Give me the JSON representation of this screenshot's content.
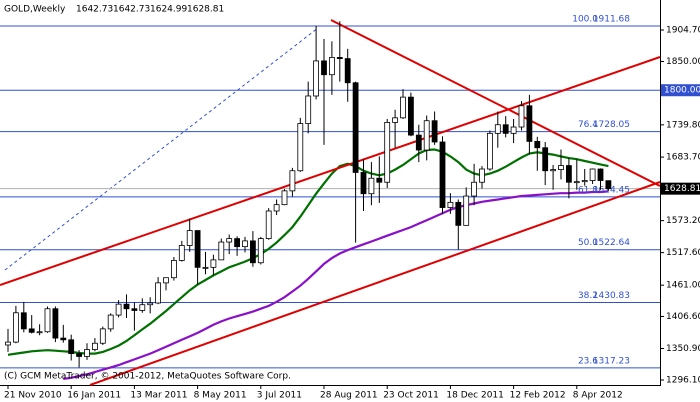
{
  "chart_data": {
    "type": "candlestick",
    "title": "GOLD,Weekly",
    "footer": "(C) GCM MetaTrader, © 2001-2012, MetaQuotes Software Corp.",
    "categories": [
      "21 Nov 2010",
      null,
      null,
      null,
      null,
      null,
      null,
      null,
      "16 Jan 2011",
      null,
      null,
      null,
      null,
      null,
      null,
      null,
      "13 Mar 2011",
      null,
      null,
      null,
      null,
      null,
      null,
      null,
      "8 May 2011",
      null,
      null,
      null,
      null,
      null,
      null,
      null,
      "3 Jul 2011",
      null,
      null,
      null,
      null,
      null,
      null,
      null,
      "28 Aug 2011",
      null,
      null,
      null,
      null,
      null,
      null,
      null,
      "23 Oct 2011",
      null,
      null,
      null,
      null,
      null,
      null,
      null,
      "18 Dec 2011",
      null,
      null,
      null,
      null,
      null,
      null,
      null,
      "12 Feb 2012",
      null,
      null,
      null,
      null,
      null,
      null,
      null,
      "8 Apr 2012",
      null,
      null,
      null,
      null
    ],
    "candles": [
      [
        1357,
        1385,
        1345,
        1362
      ],
      [
        1362,
        1425,
        1360,
        1413
      ],
      [
        1413,
        1432,
        1379,
        1385
      ],
      [
        1385,
        1409,
        1377,
        1379
      ],
      [
        1379,
        1393,
        1374,
        1380
      ],
      [
        1380,
        1424,
        1378,
        1420
      ],
      [
        1420,
        1424,
        1362,
        1369
      ],
      [
        1369,
        1392,
        1361,
        1366
      ],
      [
        1366,
        1375,
        1330,
        1342
      ],
      [
        1342,
        1348,
        1318,
        1337
      ],
      [
        1337,
        1360,
        1331,
        1349
      ],
      [
        1349,
        1369,
        1346,
        1360
      ],
      [
        1360,
        1389,
        1357,
        1385
      ],
      [
        1385,
        1412,
        1380,
        1409
      ],
      [
        1409,
        1435,
        1405,
        1428
      ],
      [
        1428,
        1445,
        1404,
        1420
      ],
      [
        1420,
        1431,
        1382,
        1417
      ],
      [
        1417,
        1438,
        1413,
        1427
      ],
      [
        1427,
        1440,
        1412,
        1430
      ],
      [
        1430,
        1475,
        1428,
        1465
      ],
      [
        1465,
        1474,
        1452,
        1474
      ],
      [
        1474,
        1510,
        1469,
        1504
      ],
      [
        1504,
        1538,
        1502,
        1530
      ],
      [
        1530,
        1577,
        1519,
        1556
      ],
      [
        1556,
        1556,
        1462,
        1492
      ],
      [
        1492,
        1519,
        1480,
        1492
      ],
      [
        1492,
        1514,
        1478,
        1505
      ],
      [
        1505,
        1542,
        1505,
        1536
      ],
      [
        1536,
        1549,
        1515,
        1542
      ],
      [
        1542,
        1546,
        1512,
        1528
      ],
      [
        1528,
        1545,
        1518,
        1538
      ],
      [
        1538,
        1555,
        1493,
        1500
      ],
      [
        1500,
        1545,
        1497,
        1542
      ],
      [
        1542,
        1595,
        1540,
        1590
      ],
      [
        1590,
        1610,
        1583,
        1601
      ],
      [
        1601,
        1628,
        1600,
        1625
      ],
      [
        1625,
        1665,
        1615,
        1660
      ],
      [
        1660,
        1752,
        1658,
        1742
      ],
      [
        1742,
        1815,
        1725,
        1790
      ],
      [
        1790,
        1912,
        1784,
        1851
      ],
      [
        1851,
        1889,
        1705,
        1827
      ],
      [
        1827,
        1885,
        1792,
        1857
      ],
      [
        1857,
        1920,
        1815,
        1855
      ],
      [
        1855,
        1872,
        1780,
        1813
      ],
      [
        1813,
        1815,
        1535,
        1657
      ],
      [
        1657,
        1680,
        1590,
        1620
      ],
      [
        1620,
        1675,
        1600,
        1647
      ],
      [
        1647,
        1685,
        1604,
        1640
      ],
      [
        1640,
        1750,
        1630,
        1744
      ],
      [
        1744,
        1766,
        1700,
        1752
      ],
      [
        1752,
        1802,
        1750,
        1788
      ],
      [
        1788,
        1796,
        1720,
        1722
      ],
      [
        1722,
        1740,
        1675,
        1696
      ],
      [
        1696,
        1756,
        1678,
        1747
      ],
      [
        1747,
        1763,
        1705,
        1710
      ],
      [
        1710,
        1720,
        1585,
        1596
      ],
      [
        1596,
        1621,
        1585,
        1605
      ],
      [
        1605,
        1610,
        1523,
        1565
      ],
      [
        1565,
        1631,
        1565,
        1616
      ],
      [
        1616,
        1672,
        1600,
        1640
      ],
      [
        1640,
        1668,
        1629,
        1663
      ],
      [
        1663,
        1730,
        1660,
        1725
      ],
      [
        1725,
        1763,
        1700,
        1740
      ],
      [
        1740,
        1755,
        1718,
        1725
      ],
      [
        1725,
        1750,
        1708,
        1736
      ],
      [
        1736,
        1781,
        1730,
        1773
      ],
      [
        1773,
        1792,
        1688,
        1711
      ],
      [
        1711,
        1719,
        1660,
        1700
      ],
      [
        1700,
        1710,
        1635,
        1660
      ],
      [
        1660,
        1670,
        1627,
        1662
      ],
      [
        1662,
        1697,
        1645,
        1669
      ],
      [
        1669,
        1682,
        1612,
        1640
      ],
      [
        1640,
        1680,
        1627,
        1641
      ],
      [
        1641,
        1663,
        1634,
        1643
      ],
      [
        1643,
        1664,
        1637,
        1663
      ],
      [
        1663,
        1664,
        1627,
        1643
      ],
      [
        1642.73,
        1642.73,
        1624.99,
        1628.81
      ]
    ],
    "lines": [
      {
        "color": "#007000",
        "values": [
          1340,
          1342,
          1344,
          1346,
          1347,
          1348,
          1347,
          1346,
          1345,
          1343,
          1342,
          1342,
          1345,
          1350,
          1356,
          1364,
          1374,
          1384,
          1394,
          1405,
          1416,
          1428,
          1440,
          1452,
          1462,
          1470,
          1478,
          1485,
          1492,
          1497,
          1502,
          1508,
          1515,
          1524,
          1535,
          1548,
          1562,
          1580,
          1600,
          1620,
          1638,
          1655,
          1668,
          1672,
          1668,
          1660,
          1655,
          1652,
          1655,
          1662,
          1670,
          1680,
          1690,
          1696,
          1697,
          1693,
          1685,
          1675,
          1662,
          1655,
          1652,
          1655,
          1660,
          1667,
          1675,
          1683,
          1690,
          1692,
          1690,
          1688,
          1685,
          1682,
          1680,
          1677,
          1674,
          1671,
          1668
        ]
      },
      {
        "color": "#8a10c8",
        "values": [
          null,
          null,
          null,
          null,
          null,
          null,
          null,
          1298,
          1300,
          1303,
          1306,
          1310,
          1314,
          1318,
          1322,
          1327,
          1332,
          1337,
          1342,
          1348,
          1354,
          1360,
          1366,
          1372,
          1378,
          1385,
          1392,
          1398,
          1403,
          1407,
          1411,
          1415,
          1420,
          1425,
          1432,
          1440,
          1450,
          1460,
          1472,
          1485,
          1498,
          1508,
          1516,
          1522,
          1527,
          1532,
          1537,
          1542,
          1547,
          1552,
          1557,
          1562,
          1568,
          1574,
          1580,
          1586,
          1592,
          1597,
          1600,
          1603,
          1606,
          1608,
          1610,
          1612,
          1614,
          1616,
          1617,
          1618,
          1619,
          1620,
          1621,
          1621,
          1622,
          1622,
          1623,
          1623,
          1624
        ]
      }
    ],
    "fib_levels": [
      {
        "label": "100.0",
        "value": 1911.68
      },
      {
        "label": "76.4",
        "value": 1728.05
      },
      {
        "label": "61.8",
        "value": 1614.45
      },
      {
        "label": "50.0",
        "value": 1522.64
      },
      {
        "label": "38.2",
        "value": 1430.83
      },
      {
        "label": "23.6",
        "value": 1317.23
      }
    ],
    "hline": {
      "value": 1800,
      "label": "1800.00"
    },
    "ylim": [
      1287.4,
      1956.9
    ],
    "yticks": [
      {
        "value": 1904.7,
        "label": "1904.70"
      },
      {
        "value": 1850,
        "label": "1850.00"
      },
      {
        "value": 1739.8,
        "label": "1739.80"
      },
      {
        "value": 1683.7,
        "label": "1683.70"
      },
      {
        "value": 1573.2,
        "label": "1573.20"
      },
      {
        "value": 1517.6,
        "label": "1517.60"
      },
      {
        "value": 1461,
        "label": "1461.00"
      },
      {
        "value": 1406.6,
        "label": "1406.60"
      },
      {
        "value": 1350.9,
        "label": "1350.90"
      },
      {
        "value": 1296.1,
        "label": "1296.10"
      }
    ]
  }
}
